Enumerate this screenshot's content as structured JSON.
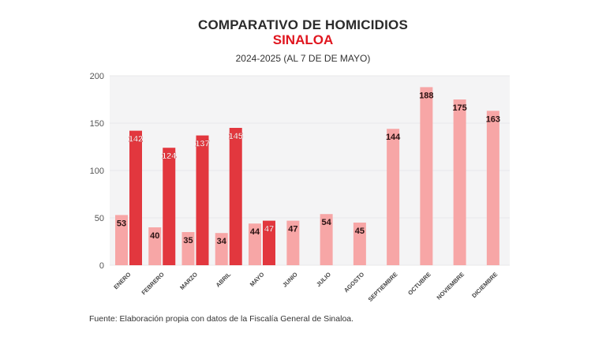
{
  "header": {
    "title": "COMPARATIVO DE HOMICIDIOS",
    "subtitle": "SINALOA",
    "period": "2024-2025 (AL 7 DE DE MAYO)"
  },
  "footer": {
    "source": "Fuente: Elaboración propia con datos de la Fiscalía General de Sinaloa."
  },
  "colors": {
    "series_2024": "#f7a6a6",
    "series_2025": "#e2373e",
    "plot_bg": "#f4f4f5",
    "title": "#2b2b2b",
    "accent": "#e0161f"
  },
  "chart_data": {
    "type": "bar",
    "title": "COMPARATIVO DE HOMICIDIOS",
    "subtitle": "SINALOA — 2024-2025 (AL 7 DE DE MAYO)",
    "xlabel": "",
    "ylabel": "",
    "ylim": [
      0,
      200
    ],
    "yticks": [
      0,
      50,
      100,
      150,
      200
    ],
    "grid": true,
    "legend": "none",
    "categories": [
      "ENERO",
      "FEBRERO",
      "MARZO",
      "ABRIL",
      "MAYO",
      "JUNIO",
      "JULIO",
      "AGOSTO",
      "SEPTIEMBRE",
      "OCTUBRE",
      "NOVIEMBRE",
      "DICIEMBRE"
    ],
    "series": [
      {
        "name": "2024",
        "values": [
          53,
          40,
          35,
          34,
          44,
          47,
          54,
          45,
          144,
          188,
          175,
          163
        ]
      },
      {
        "name": "2025",
        "values": [
          142,
          124,
          137,
          145,
          47,
          null,
          null,
          null,
          null,
          null,
          null,
          null
        ]
      }
    ]
  }
}
